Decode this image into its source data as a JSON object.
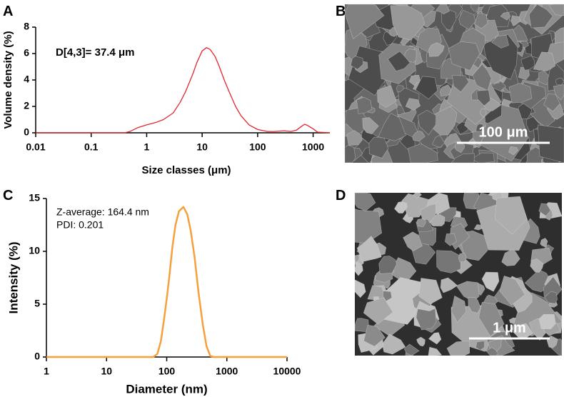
{
  "panel_labels": [
    "A",
    "B",
    "C",
    "D"
  ],
  "image_scale_labels": [
    "100 μm",
    "1 μm"
  ],
  "chart_data": [
    {
      "type": "line",
      "xscale": "log",
      "xlabel": "Size classes (μm)",
      "ylabel": "Volume density (%)",
      "annotations": [
        "D[4,3]= 37.4 μm"
      ],
      "annotation_bold": true,
      "color": "#e3262e",
      "xlim": [
        0.01,
        2000
      ],
      "xticks": [
        0.01,
        0.1,
        1,
        10,
        100,
        1000
      ],
      "ylim": [
        0,
        8
      ],
      "yticks": [
        0,
        2,
        4,
        6,
        8
      ],
      "x": [
        0.01,
        0.1,
        0.3,
        0.4,
        0.5,
        0.7,
        1,
        1.5,
        2,
        3,
        4,
        5,
        6,
        7,
        8,
        10,
        12,
        14,
        17,
        20,
        25,
        30,
        40,
        50,
        70,
        100,
        150,
        200,
        300,
        400,
        500,
        600,
        700,
        800,
        1000,
        1200,
        2000
      ],
      "values": [
        0,
        0,
        0,
        0,
        0.1,
        0.4,
        0.6,
        0.8,
        1.0,
        1.5,
        2.3,
        3.1,
        3.9,
        4.6,
        5.3,
        6.2,
        6.45,
        6.3,
        5.8,
        5.1,
        4.0,
        3.2,
        2.0,
        1.3,
        0.6,
        0.25,
        0.1,
        0.1,
        0.15,
        0.1,
        0.2,
        0.45,
        0.65,
        0.55,
        0.3,
        0.05,
        0
      ]
    },
    {
      "type": "line",
      "xscale": "log",
      "xlabel": "Diameter (nm)",
      "ylabel": "Intensity (%)",
      "annotations": [
        "Z-average: 164.4 nm",
        "PDI: 0.201"
      ],
      "annotation_bold": false,
      "color": "#f5a03c",
      "xlim": [
        1,
        10000
      ],
      "xticks": [
        1,
        10,
        100,
        1000,
        10000
      ],
      "ylim": [
        0,
        15
      ],
      "yticks": [
        0,
        5,
        10,
        15
      ],
      "x": [
        1,
        60,
        70,
        80,
        90,
        100,
        110,
        125,
        140,
        160,
        190,
        220,
        250,
        290,
        340,
        400,
        460,
        530,
        600,
        10000
      ],
      "values": [
        0,
        0,
        0.3,
        1.5,
        3.5,
        5.5,
        7.5,
        10.5,
        12.5,
        13.8,
        14.2,
        13.5,
        12,
        9.5,
        6,
        3,
        1,
        0.1,
        0,
        0
      ]
    }
  ]
}
